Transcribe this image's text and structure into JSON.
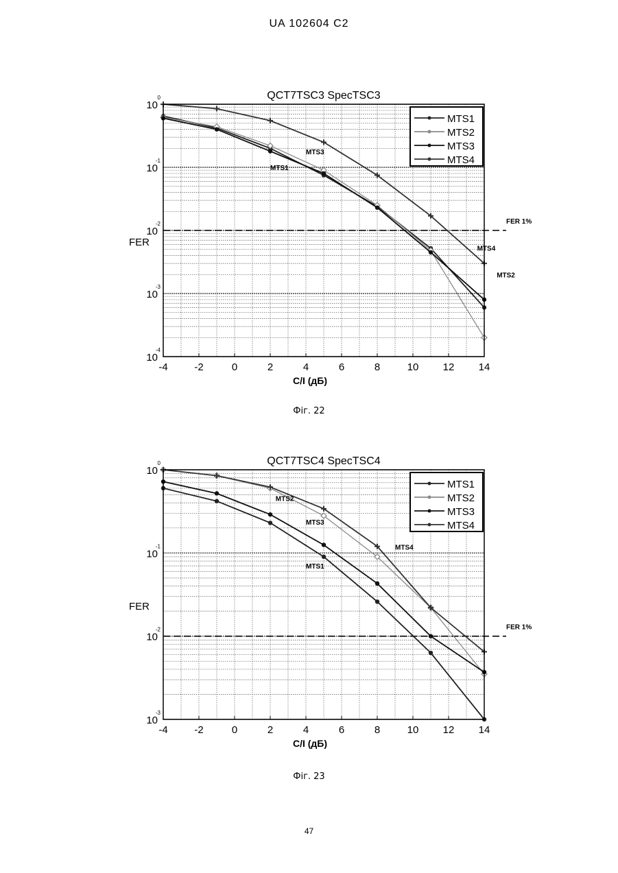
{
  "page": {
    "header": "UA   102604   C2",
    "page_number": "47"
  },
  "chart_data": [
    {
      "type": "line",
      "title": "QCT7TSC3 SpecTSC3",
      "caption": "Фіг. 22",
      "xlabel": "C/I (дБ)",
      "ylabel": "FER",
      "log_y": true,
      "xlim": [
        -4,
        14
      ],
      "ylim": [
        0.0001,
        1
      ],
      "x_ticks": [
        "-4",
        "-2",
        "0",
        "2",
        "4",
        "6",
        "8",
        "10",
        "12",
        "14"
      ],
      "y_ticks": [
        {
          "base": "10",
          "exp": "0"
        },
        {
          "base": "10",
          "exp": "-1"
        },
        {
          "base": "10",
          "exp": "-2"
        },
        {
          "base": "10",
          "exp": "-3"
        },
        {
          "base": "10",
          "exp": "-4"
        }
      ],
      "grid": true,
      "legend_position": "top-right",
      "reference_line": {
        "y": 0.01,
        "label": "FER  1%"
      },
      "series": [
        {
          "name": "MTS1",
          "color": "#222222",
          "x": [
            -4,
            -1,
            2,
            5,
            8,
            11,
            14
          ],
          "y": [
            0.65,
            0.42,
            0.2,
            0.075,
            0.024,
            0.0052,
            0.0006
          ]
        },
        {
          "name": "MTS2",
          "color": "#8a8a8a",
          "x": [
            -4,
            -1,
            2,
            5,
            8,
            11,
            14
          ],
          "y": [
            0.62,
            0.44,
            0.22,
            0.09,
            0.025,
            0.0048,
            0.0002
          ]
        },
        {
          "name": "MTS3",
          "color": "#111111",
          "x": [
            -4,
            -1,
            2,
            5,
            8,
            11,
            14
          ],
          "y": [
            0.6,
            0.4,
            0.18,
            0.08,
            0.023,
            0.0045,
            0.0008
          ]
        },
        {
          "name": "MTS4",
          "color": "#333333",
          "x": [
            -4,
            -1,
            2,
            5,
            8,
            11,
            14
          ],
          "y": [
            1.0,
            0.85,
            0.55,
            0.25,
            0.075,
            0.017,
            0.003
          ]
        }
      ],
      "annotations": [
        {
          "text": "MTS3",
          "x": 4.0,
          "y": 0.16
        },
        {
          "text": "MTS1",
          "x": 2.0,
          "y": 0.09
        },
        {
          "text": "MTS4",
          "x": 13.6,
          "y": 0.0048
        },
        {
          "text": "MTS2",
          "x": 14.7,
          "y": 0.0018
        }
      ]
    },
    {
      "type": "line",
      "title": "QCT7TSC4 SpecTSC4",
      "caption": "Фіг. 23",
      "xlabel": "C/I (дБ)",
      "ylabel": "FER",
      "log_y": true,
      "xlim": [
        -4,
        14
      ],
      "ylim": [
        0.001,
        1
      ],
      "x_ticks": [
        "-4",
        "-2",
        "0",
        "2",
        "4",
        "6",
        "8",
        "10",
        "12",
        "14"
      ],
      "y_ticks": [
        {
          "base": "10",
          "exp": "0"
        },
        {
          "base": "10",
          "exp": "-1"
        },
        {
          "base": "10",
          "exp": "-2"
        },
        {
          "base": "10",
          "exp": "-3"
        }
      ],
      "grid": true,
      "legend_position": "top-right",
      "reference_line": {
        "y": 0.01,
        "label": "FER 1%"
      },
      "series": [
        {
          "name": "MTS1",
          "color": "#222222",
          "x": [
            -4,
            -1,
            2,
            5,
            8,
            11,
            14
          ],
          "y": [
            0.6,
            0.42,
            0.23,
            0.09,
            0.026,
            0.0063,
            0.001
          ]
        },
        {
          "name": "MTS2",
          "color": "#8a8a8a",
          "x": [
            -4,
            -1,
            2,
            5,
            8,
            11,
            14
          ],
          "y": [
            1.0,
            0.85,
            0.6,
            0.28,
            0.09,
            0.022,
            0.0035
          ]
        },
        {
          "name": "MTS3",
          "color": "#111111",
          "x": [
            -4,
            -1,
            2,
            5,
            8,
            11,
            14
          ],
          "y": [
            0.72,
            0.52,
            0.29,
            0.125,
            0.043,
            0.01,
            0.0037
          ]
        },
        {
          "name": "MTS4",
          "color": "#333333",
          "x": [
            -4,
            -1,
            2,
            5,
            8,
            11,
            14
          ],
          "y": [
            1.0,
            0.85,
            0.62,
            0.34,
            0.12,
            0.022,
            0.0065
          ]
        }
      ],
      "annotations": [
        {
          "text": "MTS2",
          "x": 2.3,
          "y": 0.42
        },
        {
          "text": "MTS3",
          "x": 4.0,
          "y": 0.22
        },
        {
          "text": "MTS4",
          "x": 9.0,
          "y": 0.11
        },
        {
          "text": "MTS1",
          "x": 4.0,
          "y": 0.065
        }
      ]
    }
  ]
}
